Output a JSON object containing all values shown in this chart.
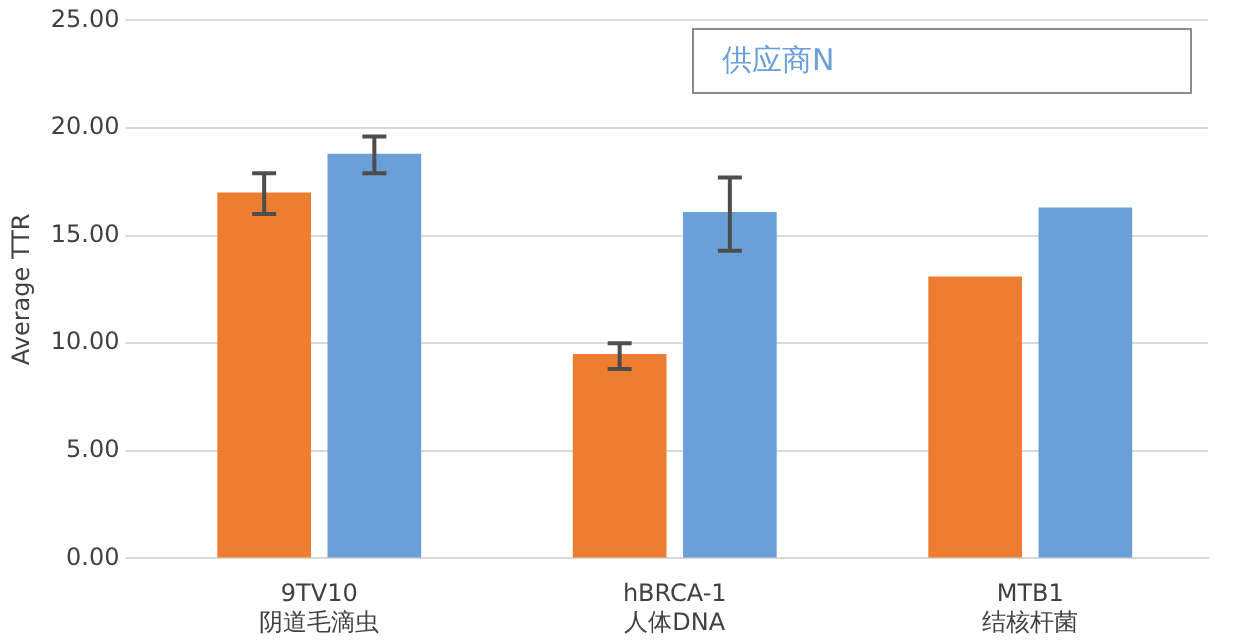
{
  "chart_data": {
    "type": "bar",
    "ylabel": "Average TTR",
    "categories": [
      "9TV10\n阴道毛滴虫",
      "hBRCA-1\n人体DNA",
      "MTB1\n结核杆菌"
    ],
    "series": [
      {
        "color": "#ed7d31",
        "values": [
          17.0,
          9.5,
          13.1
        ],
        "errors": [
          [
            16.0,
            17.9
          ],
          [
            8.8,
            10.0
          ],
          null
        ]
      },
      {
        "name": "供应商N",
        "color": "#6a9fd8",
        "values": [
          18.8,
          16.1,
          16.3
        ],
        "errors": [
          [
            17.9,
            19.6
          ],
          [
            14.3,
            17.7
          ],
          null
        ]
      }
    ],
    "ylim": [
      0,
      25
    ],
    "yticks": [
      {
        "value": 0,
        "label": "0.00"
      },
      {
        "value": 5,
        "label": "5.00"
      },
      {
        "value": 10,
        "label": "10.00"
      },
      {
        "value": 15,
        "label": "15.00"
      },
      {
        "value": 20,
        "label": "20.00"
      },
      {
        "value": 25,
        "label": "25.00"
      }
    ],
    "grid": "y",
    "legend": "top right"
  }
}
